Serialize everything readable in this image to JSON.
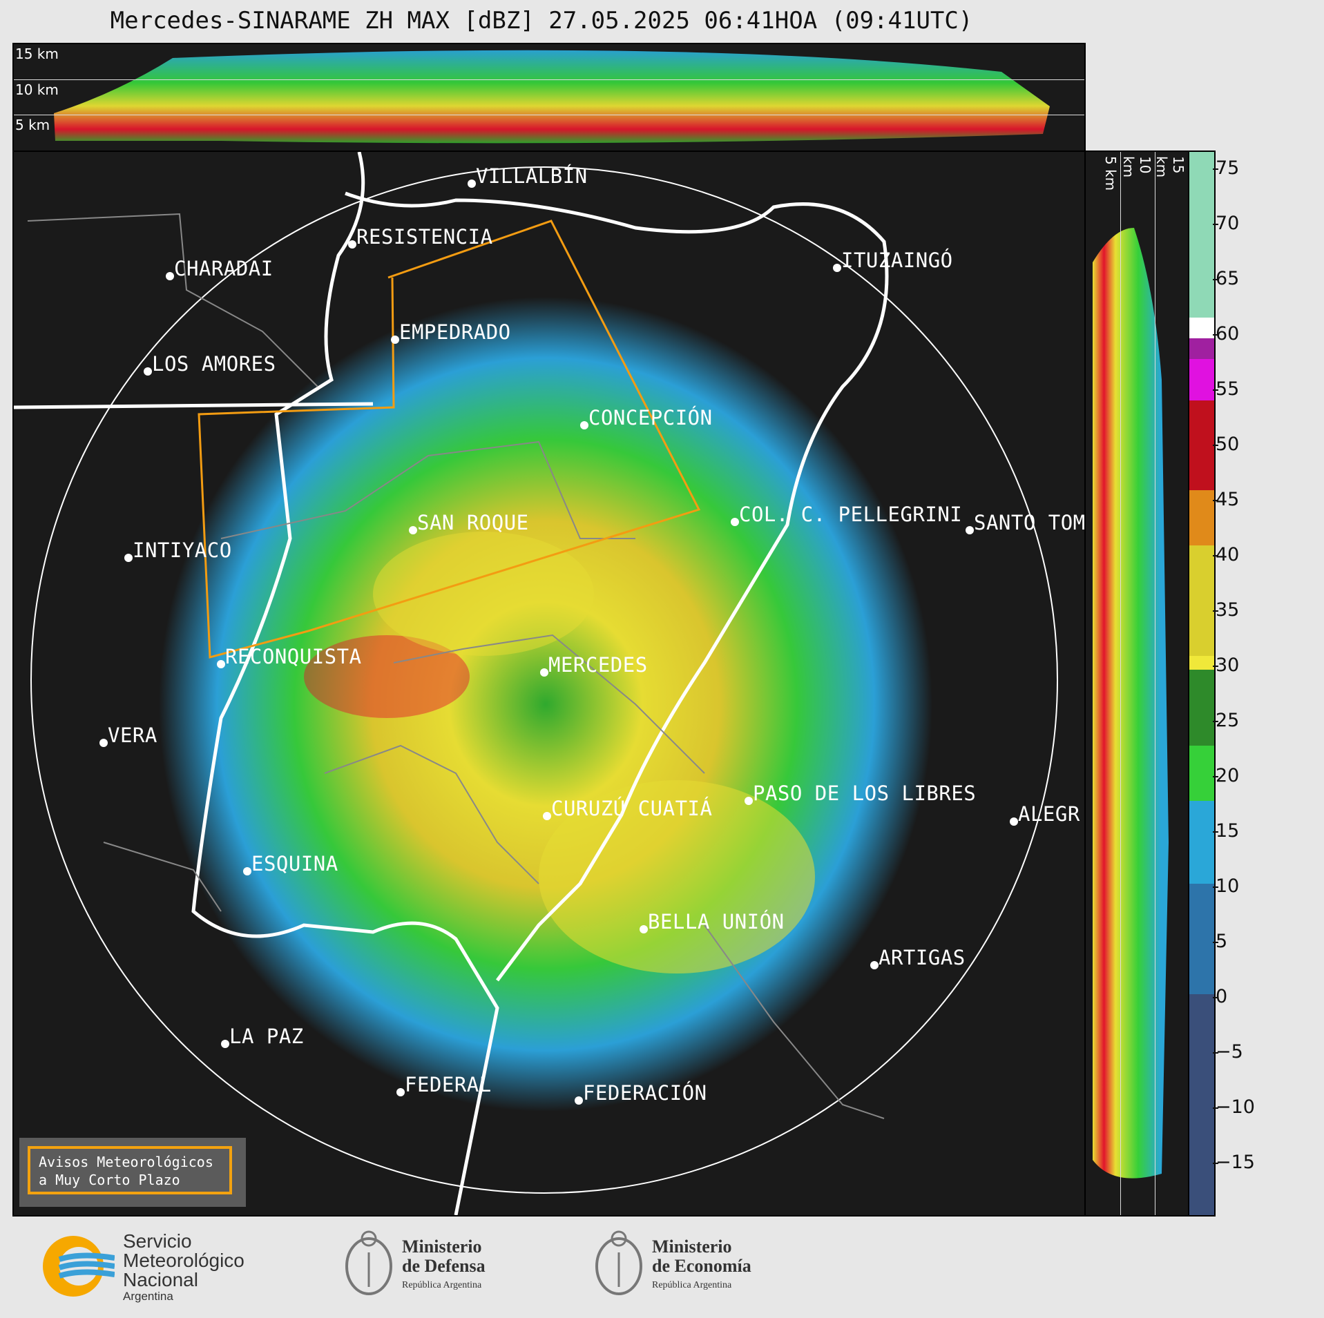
{
  "title": "Mercedes-SINARAME ZH MAX [dBZ] 27.05.2025 06:41HOA (09:41UTC)",
  "top_panel": {
    "km_labels": [
      "15 km",
      "10 km",
      "5 km"
    ]
  },
  "side_panel": {
    "km_labels": [
      "5 km",
      "10 km",
      "15 km"
    ]
  },
  "cities": [
    {
      "name": "VILLALBÍN"
    },
    {
      "name": "RESISTENCIA"
    },
    {
      "name": "CHARADAI"
    },
    {
      "name": "ITUZAINGÓ"
    },
    {
      "name": "EMPEDRADO"
    },
    {
      "name": "LOS AMORES"
    },
    {
      "name": "CONCEPCIÓN"
    },
    {
      "name": "SAN ROQUE"
    },
    {
      "name": "COL. C. PELLEGRINI"
    },
    {
      "name": "SANTO TOM"
    },
    {
      "name": "INTIYACO"
    },
    {
      "name": "RECONQUISTA"
    },
    {
      "name": "MERCEDES"
    },
    {
      "name": "VERA"
    },
    {
      "name": "CURUZÚ CUATIÁ"
    },
    {
      "name": "PASO DE LOS LIBRES"
    },
    {
      "name": "ALEGR"
    },
    {
      "name": "ESQUINA"
    },
    {
      "name": "BELLA UNIÓN"
    },
    {
      "name": "ARTIGAS"
    },
    {
      "name": "LA PAZ"
    },
    {
      "name": "FEDERAL"
    },
    {
      "name": "FEDERACIÓN"
    }
  ],
  "warning_box": {
    "line1": "Avisos Meteorológicos",
    "line2": "a Muy Corto Plazo"
  },
  "colorbar": {
    "unit": "dBZ",
    "ticks": [
      "75",
      "70",
      "65",
      "60",
      "55",
      "50",
      "45",
      "40",
      "35",
      "30",
      "25",
      "20",
      "15",
      "10",
      "5",
      "0",
      "−5",
      "−10",
      "−15"
    ]
  },
  "logos": {
    "smn": [
      "Servicio",
      "Meteorológico",
      "Nacional",
      "Argentina"
    ],
    "defensa": [
      "Ministerio",
      "de Defensa",
      "República Argentina"
    ],
    "economia": [
      "Ministerio",
      "de Economía",
      "República Argentina"
    ]
  }
}
